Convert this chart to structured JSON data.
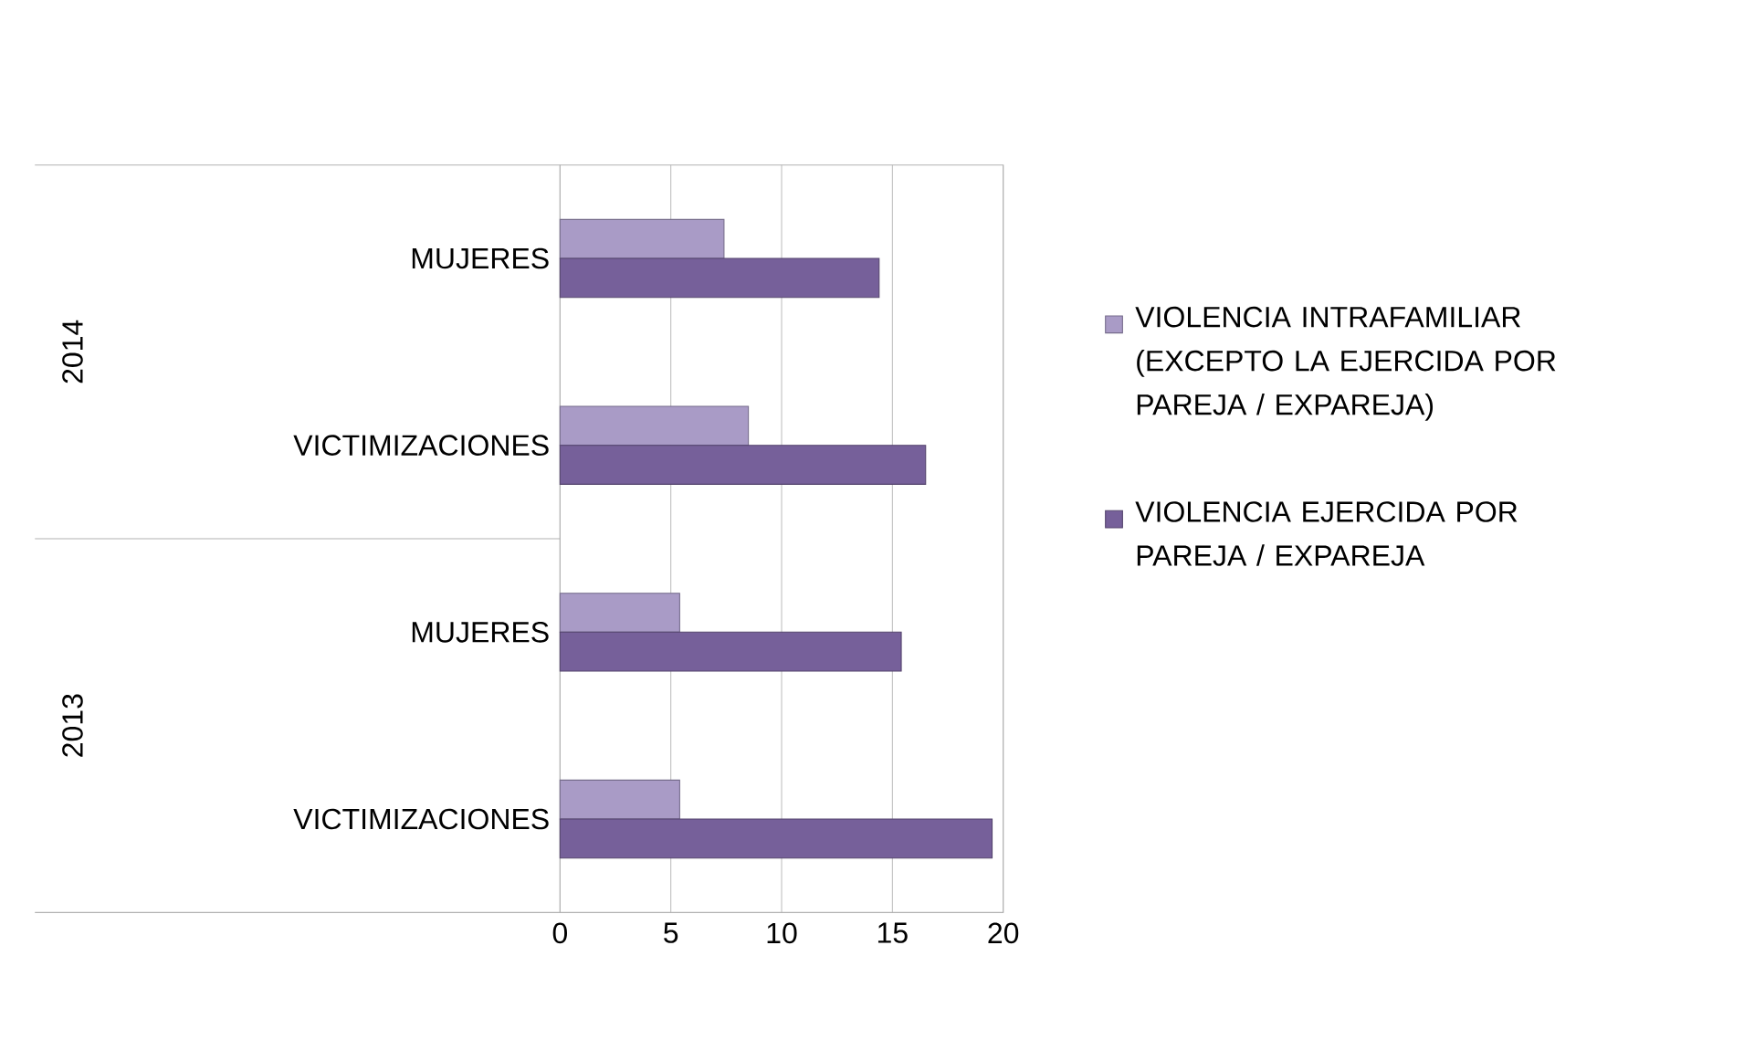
{
  "chart_data": {
    "type": "bar",
    "orientation": "horizontal",
    "categories": [
      "MUJERES",
      "VICTIMIZACIONES",
      "MUJERES",
      "VICTIMIZACIONES"
    ],
    "annotations": [
      "2014",
      "2013"
    ],
    "series": [
      {
        "name": "VIOLENCIA INTRAFAMILIAR (EXCEPTO LA EJERCIDA POR PAREJA / EXPAREJA)",
        "color": "#a99bc6",
        "values": [
          7.4,
          8.5,
          5.4,
          5.4
        ]
      },
      {
        "name": "VIOLENCIA EJERCIDA POR PAREJA / EXPAREJA",
        "color": "#76609a",
        "values": [
          14.4,
          16.5,
          15.4,
          19.5
        ]
      }
    ],
    "xlim": [
      0,
      20
    ],
    "xticks": [
      0,
      5,
      10,
      15,
      20
    ],
    "grid": "x",
    "legend": "right"
  }
}
